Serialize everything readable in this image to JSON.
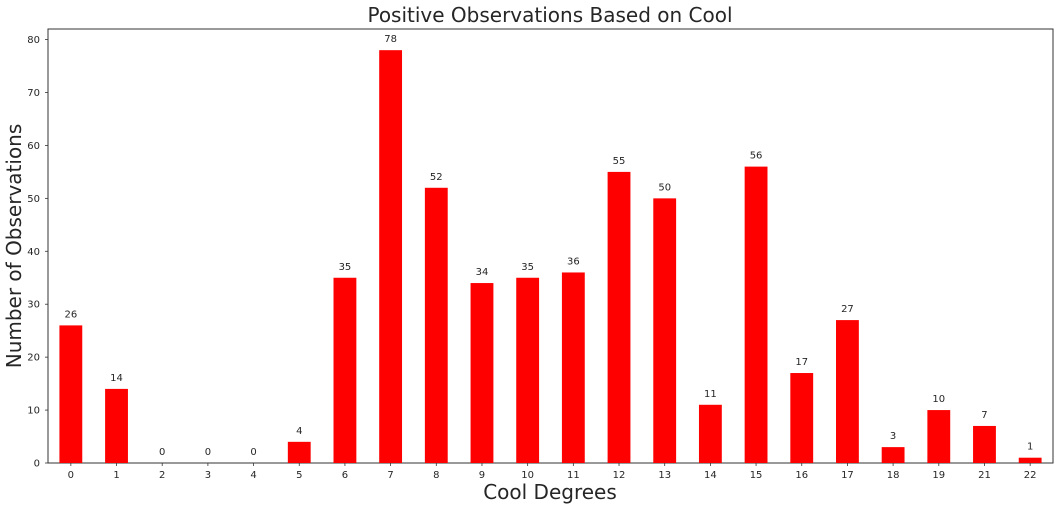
{
  "chart_data": {
    "type": "bar",
    "title": "Positive Observations Based on Cool",
    "xlabel": "Cool Degrees",
    "ylabel": "Number of Observations",
    "categories": [
      "0",
      "1",
      "2",
      "3",
      "4",
      "5",
      "6",
      "7",
      "8",
      "9",
      "10",
      "11",
      "12",
      "13",
      "14",
      "15",
      "16",
      "17",
      "18",
      "19",
      "21",
      "22"
    ],
    "values": [
      26,
      14,
      0,
      0,
      0,
      4,
      35,
      78,
      52,
      34,
      35,
      36,
      55,
      50,
      11,
      56,
      17,
      27,
      3,
      10,
      7,
      1
    ],
    "ylim": [
      0,
      82
    ],
    "yticks": [
      0,
      10,
      20,
      30,
      40,
      50,
      60,
      70,
      80
    ],
    "grid": false,
    "legend": "none",
    "bar_color": "#ff0000"
  }
}
